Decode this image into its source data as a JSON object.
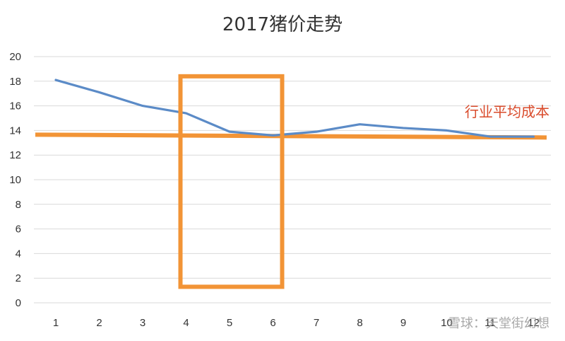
{
  "chart_data": {
    "type": "line",
    "title": "2017猪价走势",
    "xlabel": "",
    "ylabel": "",
    "categories": [
      "1",
      "2",
      "3",
      "4",
      "5",
      "6",
      "7",
      "8",
      "9",
      "10",
      "11",
      "12"
    ],
    "series": [
      {
        "values": [
          18.1,
          17.1,
          16.0,
          15.4,
          13.9,
          13.6,
          13.9,
          14.5,
          14.2,
          14.0,
          13.5,
          13.5
        ]
      }
    ],
    "ylim": [
      0,
      20
    ],
    "yticks": [
      "0",
      "2",
      "4",
      "6",
      "8",
      "10",
      "12",
      "14",
      "16",
      "18",
      "20"
    ],
    "grid": true,
    "reference_line": {
      "label": "行业平均成本",
      "value": 13.6
    },
    "highlight_box": {
      "from_category": "4",
      "to_category": "6",
      "y_range": [
        1.3,
        18.4
      ]
    },
    "colors": {
      "series": "#5b8bc7",
      "reference": "#f29436",
      "annotation": "#d94a2a",
      "grid": "#d9d9d9"
    }
  },
  "watermark": "雪球：天堂街幻想"
}
